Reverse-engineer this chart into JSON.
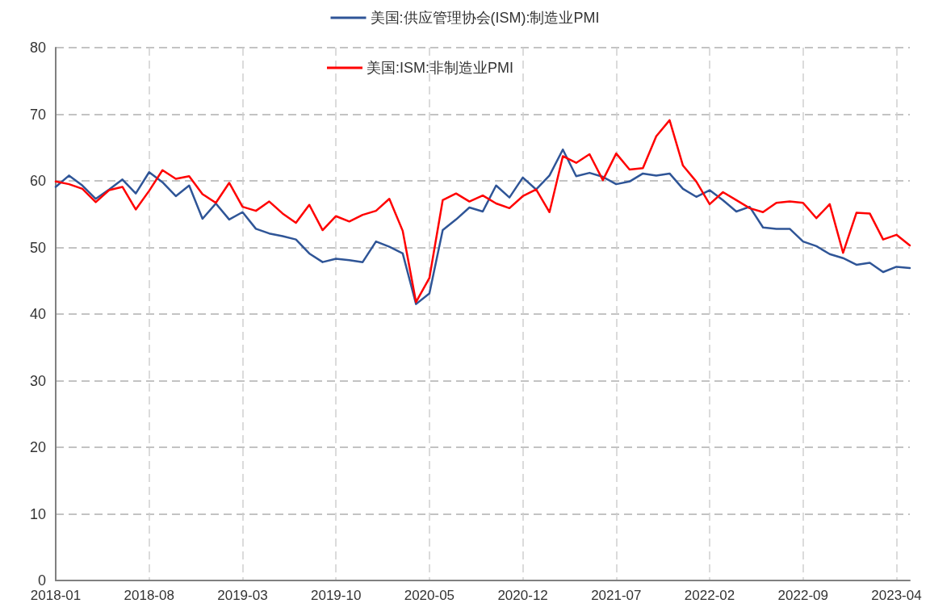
{
  "chart_data": {
    "type": "line",
    "categories": [
      "2018-01",
      null,
      null,
      null,
      null,
      null,
      null,
      "2018-08",
      null,
      null,
      null,
      null,
      null,
      null,
      "2019-03",
      null,
      null,
      null,
      null,
      null,
      null,
      "2019-10",
      null,
      null,
      null,
      null,
      null,
      null,
      "2020-05",
      null,
      null,
      null,
      null,
      null,
      null,
      "2020-12",
      null,
      null,
      null,
      null,
      null,
      null,
      "2021-07",
      null,
      null,
      null,
      null,
      null,
      null,
      "2022-02",
      null,
      null,
      null,
      null,
      null,
      null,
      "2022-09",
      null,
      null,
      null,
      null,
      null,
      null,
      "2023-04",
      null
    ],
    "series": [
      {
        "name": "美国:供应管理协会(ISM):制造业PMI",
        "color": "#2f5597",
        "values": [
          59.1,
          60.8,
          59.3,
          57.3,
          58.7,
          60.2,
          58.1,
          61.3,
          59.8,
          57.7,
          59.3,
          54.3,
          56.6,
          54.2,
          55.3,
          52.8,
          52.1,
          51.7,
          51.2,
          49.1,
          47.8,
          48.3,
          48.1,
          47.8,
          50.9,
          50.1,
          49.1,
          41.5,
          43.1,
          52.6,
          54.2,
          56.0,
          55.4,
          59.3,
          57.5,
          60.5,
          58.7,
          60.8,
          64.7,
          60.7,
          61.2,
          60.6,
          59.5,
          59.9,
          61.1,
          60.8,
          61.1,
          58.8,
          57.6,
          58.6,
          57.1,
          55.4,
          56.1,
          53.0,
          52.8,
          52.8,
          50.9,
          50.2,
          49.0,
          48.4,
          47.4,
          47.7,
          46.3,
          47.1,
          46.9
        ]
      },
      {
        "name": "美国:ISM:非制造业PMI",
        "color": "#ff0000",
        "values": [
          59.9,
          59.5,
          58.8,
          56.8,
          58.6,
          59.1,
          55.7,
          58.5,
          61.6,
          60.3,
          60.7,
          58.0,
          56.7,
          59.7,
          56.1,
          55.5,
          56.9,
          55.1,
          53.7,
          56.4,
          52.6,
          54.7,
          53.9,
          54.9,
          55.5,
          57.3,
          52.5,
          41.8,
          45.4,
          57.1,
          58.1,
          56.9,
          57.8,
          56.6,
          55.9,
          57.7,
          58.7,
          55.3,
          63.7,
          62.7,
          64.0,
          60.1,
          64.1,
          61.7,
          61.9,
          66.7,
          69.1,
          62.3,
          59.9,
          56.5,
          58.3,
          57.1,
          55.9,
          55.3,
          56.7,
          56.9,
          56.7,
          54.4,
          56.5,
          49.2,
          55.2,
          55.1,
          51.2,
          51.9,
          50.3
        ]
      }
    ],
    "ylim": [
      0,
      80
    ],
    "yticks": [
      0,
      10,
      20,
      30,
      40,
      50,
      60,
      70,
      80
    ],
    "grid": true,
    "legend": "top",
    "marker": "none",
    "line_style": "solid"
  }
}
